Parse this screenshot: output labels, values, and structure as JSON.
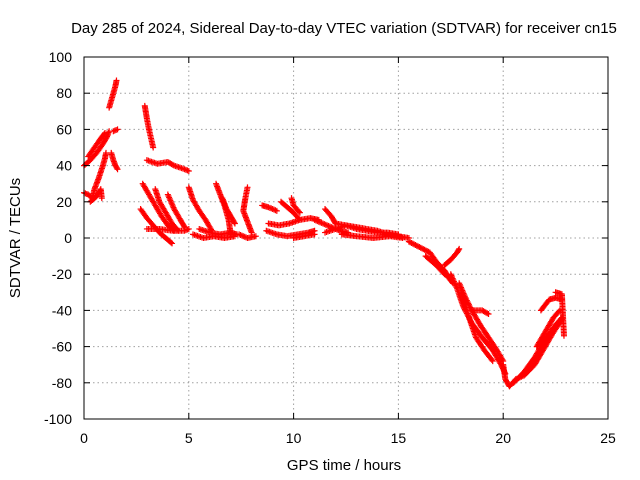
{
  "chart_data": {
    "type": "scatter",
    "title": "Day 285 of 2024, Sidereal Day-to-day VTEC variation (SDTVAR) for receiver cn15",
    "xlabel": "GPS time / hours",
    "ylabel": "SDTVAR / TECUs",
    "xlim": [
      0,
      25
    ],
    "ylim": [
      -100,
      100
    ],
    "xticks": [
      0,
      5,
      10,
      15,
      20,
      25
    ],
    "yticks": [
      -100,
      -80,
      -60,
      -40,
      -20,
      0,
      20,
      40,
      60,
      80,
      100
    ],
    "xtick_labels": [
      "0",
      "5",
      "10",
      "15",
      "20",
      "25"
    ],
    "ytick_labels": [
      "-100",
      "-80",
      "-60",
      "-40",
      "-20",
      "0",
      "20",
      "40",
      "60",
      "80",
      "100"
    ],
    "grid": true,
    "marker": "+",
    "color": "#ff0000",
    "series": [
      {
        "name": "SDTVAR",
        "segments": [
          [
            [
              0.0,
              40
            ],
            [
              0.3,
              43
            ],
            [
              0.6,
              47
            ],
            [
              0.9,
              52
            ],
            [
              1.1,
              56
            ],
            [
              1.2,
              59
            ]
          ],
          [
            [
              0.2,
              45
            ],
            [
              0.5,
              50
            ],
            [
              0.8,
              55
            ],
            [
              1.0,
              58
            ]
          ],
          [
            [
              0.0,
              25
            ],
            [
              0.2,
              24
            ],
            [
              0.4,
              22
            ],
            [
              0.5,
              27
            ],
            [
              0.7,
              33
            ],
            [
              0.9,
              40
            ],
            [
              1.0,
              44
            ],
            [
              1.05,
              47
            ]
          ],
          [
            [
              0.3,
              20
            ],
            [
              0.6,
              23
            ],
            [
              0.8,
              27
            ],
            [
              0.85,
              22
            ]
          ],
          [
            [
              1.2,
              72
            ],
            [
              1.3,
              76
            ],
            [
              1.4,
              80
            ],
            [
              1.5,
              84
            ],
            [
              1.55,
              87
            ]
          ],
          [
            [
              1.3,
              47
            ],
            [
              1.4,
              43
            ],
            [
              1.5,
              40
            ],
            [
              1.6,
              38
            ]
          ],
          [
            [
              1.4,
              59
            ],
            [
              1.6,
              60
            ]
          ],
          [
            [
              2.9,
              73
            ],
            [
              3.0,
              66
            ],
            [
              3.1,
              60
            ],
            [
              3.2,
              55
            ],
            [
              3.3,
              50
            ]
          ],
          [
            [
              3.0,
              43
            ],
            [
              3.5,
              41
            ],
            [
              4.0,
              42
            ],
            [
              4.3,
              40
            ],
            [
              4.8,
              38
            ],
            [
              5.0,
              37
            ]
          ],
          [
            [
              2.8,
              30
            ],
            [
              3.1,
              24
            ],
            [
              3.4,
              18
            ],
            [
              3.7,
              12
            ],
            [
              4.0,
              7
            ],
            [
              4.3,
              4
            ]
          ],
          [
            [
              2.7,
              16
            ],
            [
              3.0,
              11
            ],
            [
              3.3,
              7
            ],
            [
              3.6,
              3
            ],
            [
              3.9,
              0
            ],
            [
              4.2,
              -3
            ]
          ],
          [
            [
              3.4,
              27
            ],
            [
              3.6,
              20
            ],
            [
              3.9,
              14
            ],
            [
              4.2,
              8
            ],
            [
              4.5,
              4
            ]
          ],
          [
            [
              3.0,
              5
            ],
            [
              3.6,
              5
            ],
            [
              4.2,
              4
            ],
            [
              4.8,
              4
            ],
            [
              5.0,
              5
            ]
          ],
          [
            [
              4.0,
              24
            ],
            [
              4.3,
              16
            ],
            [
              4.6,
              10
            ],
            [
              4.8,
              6
            ]
          ],
          [
            [
              5.0,
              28
            ],
            [
              5.2,
              21
            ],
            [
              5.5,
              15
            ],
            [
              5.8,
              10
            ],
            [
              6.1,
              4
            ]
          ],
          [
            [
              5.2,
              2
            ],
            [
              5.7,
              0
            ],
            [
              6.2,
              1
            ],
            [
              6.7,
              0
            ],
            [
              7.2,
              1
            ]
          ],
          [
            [
              5.5,
              5
            ],
            [
              6.0,
              3
            ],
            [
              6.5,
              2
            ],
            [
              7.0,
              3
            ],
            [
              7.3,
              2
            ]
          ],
          [
            [
              6.3,
              30
            ],
            [
              6.5,
              24
            ],
            [
              6.7,
              18
            ],
            [
              6.9,
              10
            ],
            [
              7.0,
              2
            ]
          ],
          [
            [
              6.6,
              22
            ],
            [
              6.8,
              16
            ],
            [
              7.0,
              12
            ],
            [
              7.2,
              8
            ]
          ],
          [
            [
              7.8,
              28
            ],
            [
              7.7,
              22
            ],
            [
              7.6,
              15
            ],
            [
              7.8,
              9
            ],
            [
              8.0,
              3
            ]
          ],
          [
            [
              7.4,
              2
            ],
            [
              7.8,
              0
            ],
            [
              8.2,
              1
            ]
          ],
          [
            [
              8.5,
              18
            ],
            [
              8.8,
              17
            ],
            [
              9.2,
              15
            ]
          ],
          [
            [
              8.7,
              4
            ],
            [
              9.2,
              2
            ],
            [
              9.7,
              1
            ],
            [
              10.2,
              2
            ],
            [
              10.7,
              3
            ],
            [
              11.0,
              4
            ]
          ],
          [
            [
              8.8,
              8
            ],
            [
              9.3,
              7
            ],
            [
              9.8,
              8
            ],
            [
              10.3,
              10
            ],
            [
              10.8,
              11
            ],
            [
              11.2,
              10
            ]
          ],
          [
            [
              9.4,
              20
            ],
            [
              9.7,
              17
            ],
            [
              10.0,
              14
            ],
            [
              10.3,
              10
            ]
          ],
          [
            [
              9.9,
              22
            ],
            [
              10.0,
              18
            ],
            [
              10.3,
              14
            ]
          ],
          [
            [
              10.0,
              0
            ],
            [
              10.5,
              1
            ],
            [
              11.0,
              2
            ]
          ],
          [
            [
              11.0,
              10
            ],
            [
              11.4,
              8
            ],
            [
              11.8,
              6
            ],
            [
              12.2,
              4
            ],
            [
              12.6,
              3
            ]
          ],
          [
            [
              11.5,
              16
            ],
            [
              11.8,
              12
            ],
            [
              12.0,
              8
            ]
          ],
          [
            [
              11.5,
              3
            ],
            [
              12.0,
              5
            ],
            [
              12.5,
              7
            ],
            [
              13.0,
              5
            ],
            [
              13.5,
              4
            ],
            [
              14.0,
              3
            ],
            [
              14.5,
              3
            ],
            [
              15.0,
              2
            ]
          ],
          [
            [
              12.0,
              8
            ],
            [
              12.5,
              7
            ],
            [
              13.0,
              6
            ],
            [
              13.5,
              5
            ],
            [
              14.0,
              4
            ],
            [
              14.5,
              2
            ],
            [
              15.0,
              1
            ],
            [
              15.5,
              0
            ]
          ],
          [
            [
              12.3,
              2
            ],
            [
              13.0,
              1
            ],
            [
              13.8,
              0
            ],
            [
              14.6,
              1
            ],
            [
              15.2,
              0
            ]
          ],
          [
            [
              15.5,
              -2
            ],
            [
              16.0,
              -5
            ],
            [
              16.5,
              -8
            ],
            [
              16.8,
              -13
            ],
            [
              17.2,
              -18
            ],
            [
              17.4,
              -22
            ],
            [
              17.6,
              -25
            ]
          ],
          [
            [
              16.3,
              -10
            ],
            [
              16.8,
              -15
            ],
            [
              17.2,
              -20
            ],
            [
              17.5,
              -22
            ]
          ],
          [
            [
              17.2,
              -15
            ],
            [
              17.5,
              -12
            ],
            [
              17.8,
              -8
            ],
            [
              17.9,
              -6
            ]
          ],
          [
            [
              17.5,
              -20
            ],
            [
              17.8,
              -28
            ],
            [
              18.1,
              -38
            ],
            [
              18.5,
              -47
            ],
            [
              19.0,
              -55
            ],
            [
              19.5,
              -62
            ],
            [
              19.9,
              -70
            ],
            [
              20.1,
              -75
            ]
          ],
          [
            [
              17.9,
              -25
            ],
            [
              18.2,
              -33
            ],
            [
              18.5,
              -40
            ],
            [
              18.9,
              -48
            ],
            [
              19.3,
              -55
            ],
            [
              19.7,
              -62
            ],
            [
              20.0,
              -68
            ]
          ],
          [
            [
              18.0,
              -30
            ],
            [
              18.4,
              -45
            ],
            [
              18.7,
              -55
            ],
            [
              19.1,
              -62
            ],
            [
              19.5,
              -68
            ]
          ],
          [
            [
              18.5,
              -40
            ],
            [
              19.0,
              -40
            ],
            [
              19.3,
              -42
            ]
          ],
          [
            [
              20.0,
              -70
            ],
            [
              20.1,
              -78
            ],
            [
              20.3,
              -82
            ],
            [
              20.6,
              -78
            ],
            [
              21.0,
              -76
            ],
            [
              21.5,
              -70
            ],
            [
              22.0,
              -60
            ],
            [
              22.4,
              -52
            ],
            [
              22.8,
              -45
            ]
          ],
          [
            [
              20.5,
              -80
            ],
            [
              21.0,
              -74
            ],
            [
              21.5,
              -66
            ],
            [
              22.0,
              -56
            ],
            [
              22.5,
              -48
            ],
            [
              22.8,
              -44
            ]
          ],
          [
            [
              21.8,
              -40
            ],
            [
              22.2,
              -34
            ],
            [
              22.5,
              -33
            ],
            [
              22.8,
              -34
            ]
          ],
          [
            [
              21.6,
              -60
            ],
            [
              22.0,
              -52
            ],
            [
              22.4,
              -44
            ],
            [
              22.7,
              -40
            ]
          ],
          [
            [
              22.5,
              -30
            ],
            [
              22.8,
              -31
            ],
            [
              22.9,
              -54
            ]
          ]
        ]
      }
    ]
  }
}
